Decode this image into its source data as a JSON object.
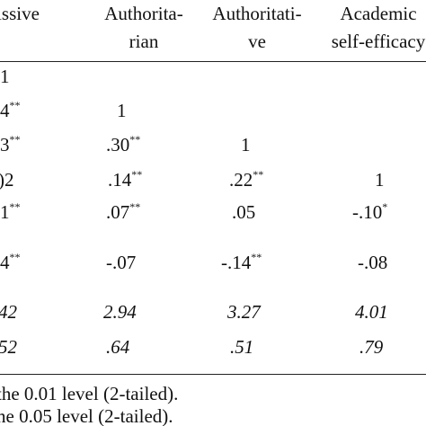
{
  "headers": [
    {
      "line1": "issive",
      "line2": ""
    },
    {
      "line1": "Authorita-",
      "line2": "rian"
    },
    {
      "line1": "Authoritati-",
      "line2": "ve"
    },
    {
      "line1": "Academic",
      "line2": "self-efficacy"
    }
  ],
  "rows": [
    [
      {
        "v": "1",
        "s": ""
      },
      {
        "v": "",
        "s": ""
      },
      {
        "v": "",
        "s": ""
      },
      {
        "v": "",
        "s": ""
      }
    ],
    [
      {
        "v": "4",
        "s": "**"
      },
      {
        "v": "1",
        "s": ""
      },
      {
        "v": "",
        "s": ""
      },
      {
        "v": "",
        "s": ""
      }
    ],
    [
      {
        "v": "3",
        "s": "**"
      },
      {
        "v": ".30",
        "s": "**"
      },
      {
        "v": "1",
        "s": ""
      },
      {
        "v": "",
        "s": ""
      }
    ],
    [
      {
        "v": ")2",
        "s": ""
      },
      {
        "v": ".14",
        "s": "**"
      },
      {
        "v": ".22",
        "s": "**"
      },
      {
        "v": "1",
        "s": ""
      }
    ],
    [
      {
        "v": "1",
        "s": "**"
      },
      {
        "v": ".07",
        "s": "**"
      },
      {
        "v": ".05",
        "s": ""
      },
      {
        "v": "-.10",
        "s": "*"
      }
    ],
    [
      {
        "v": "4",
        "s": "**"
      },
      {
        "v": "-.07",
        "s": ""
      },
      {
        "v": "-.14",
        "s": "**"
      },
      {
        "v": "-.08",
        "s": ""
      }
    ],
    [
      {
        "v": "42",
        "s": ""
      },
      {
        "v": "2.94",
        "s": ""
      },
      {
        "v": "3.27",
        "s": ""
      },
      {
        "v": "4.01",
        "s": ""
      }
    ],
    [
      {
        "v": "52",
        "s": ""
      },
      {
        "v": ".64",
        "s": ""
      },
      {
        "v": ".51",
        "s": ""
      },
      {
        "v": ".79",
        "s": ""
      }
    ]
  ],
  "notes": [
    "the 0.01 level (2-tailed).",
    "ne 0.05 level (2-tailed)."
  ]
}
